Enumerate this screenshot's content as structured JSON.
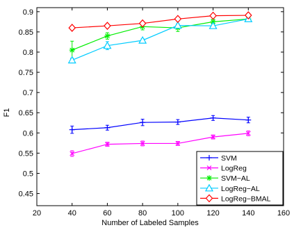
{
  "chart_data": {
    "type": "line",
    "title": "",
    "xlabel": "Number of Labeled Samples",
    "ylabel": "F1",
    "xlim": [
      20,
      160
    ],
    "ylim": [
      0.42,
      0.91
    ],
    "xticks": [
      "20",
      "40",
      "60",
      "80",
      "100",
      "120",
      "140",
      "160"
    ],
    "yticks": [
      "0.45",
      "0.5",
      "0.55",
      "0.6",
      "0.65",
      "0.7",
      "0.75",
      "0.8",
      "0.85",
      "0.9"
    ],
    "grid": false,
    "legend_position": "bottom-right",
    "x": [
      40,
      60,
      80,
      100,
      120,
      140
    ],
    "series": [
      {
        "name": "SVM",
        "color": "#0000ff",
        "marker": "plus",
        "values": [
          0.608,
          0.613,
          0.626,
          0.627,
          0.637,
          0.632
        ],
        "errors": [
          0.009,
          0.006,
          0.008,
          0.006,
          0.006,
          0.007
        ]
      },
      {
        "name": "LogReg",
        "color": "#ff00ff",
        "marker": "x",
        "values": [
          0.549,
          0.572,
          0.574,
          0.574,
          0.59,
          0.599
        ],
        "errors": [
          0.007,
          0.005,
          0.006,
          0.005,
          0.005,
          0.006
        ]
      },
      {
        "name": "SVM−AL",
        "color": "#00ee00",
        "marker": "star",
        "values": [
          0.805,
          0.84,
          0.863,
          0.86,
          0.875,
          0.882
        ],
        "errors": [
          0.022,
          0.008,
          0.008,
          0.009,
          0.006,
          0.005
        ]
      },
      {
        "name": "LogReg−AL",
        "color": "#00ccff",
        "marker": "triangle",
        "values": [
          0.78,
          0.816,
          0.829,
          0.866,
          0.865,
          0.882
        ],
        "errors": [
          0.005,
          0.01,
          0.004,
          0.004,
          0.004,
          0.004
        ]
      },
      {
        "name": "LogReg−BMAL",
        "color": "#ff0000",
        "marker": "diamond",
        "values": [
          0.86,
          0.865,
          0.871,
          0.882,
          0.89,
          0.891
        ],
        "errors": [
          0.002,
          0.002,
          0.002,
          0.002,
          0.002,
          0.002
        ]
      }
    ]
  }
}
